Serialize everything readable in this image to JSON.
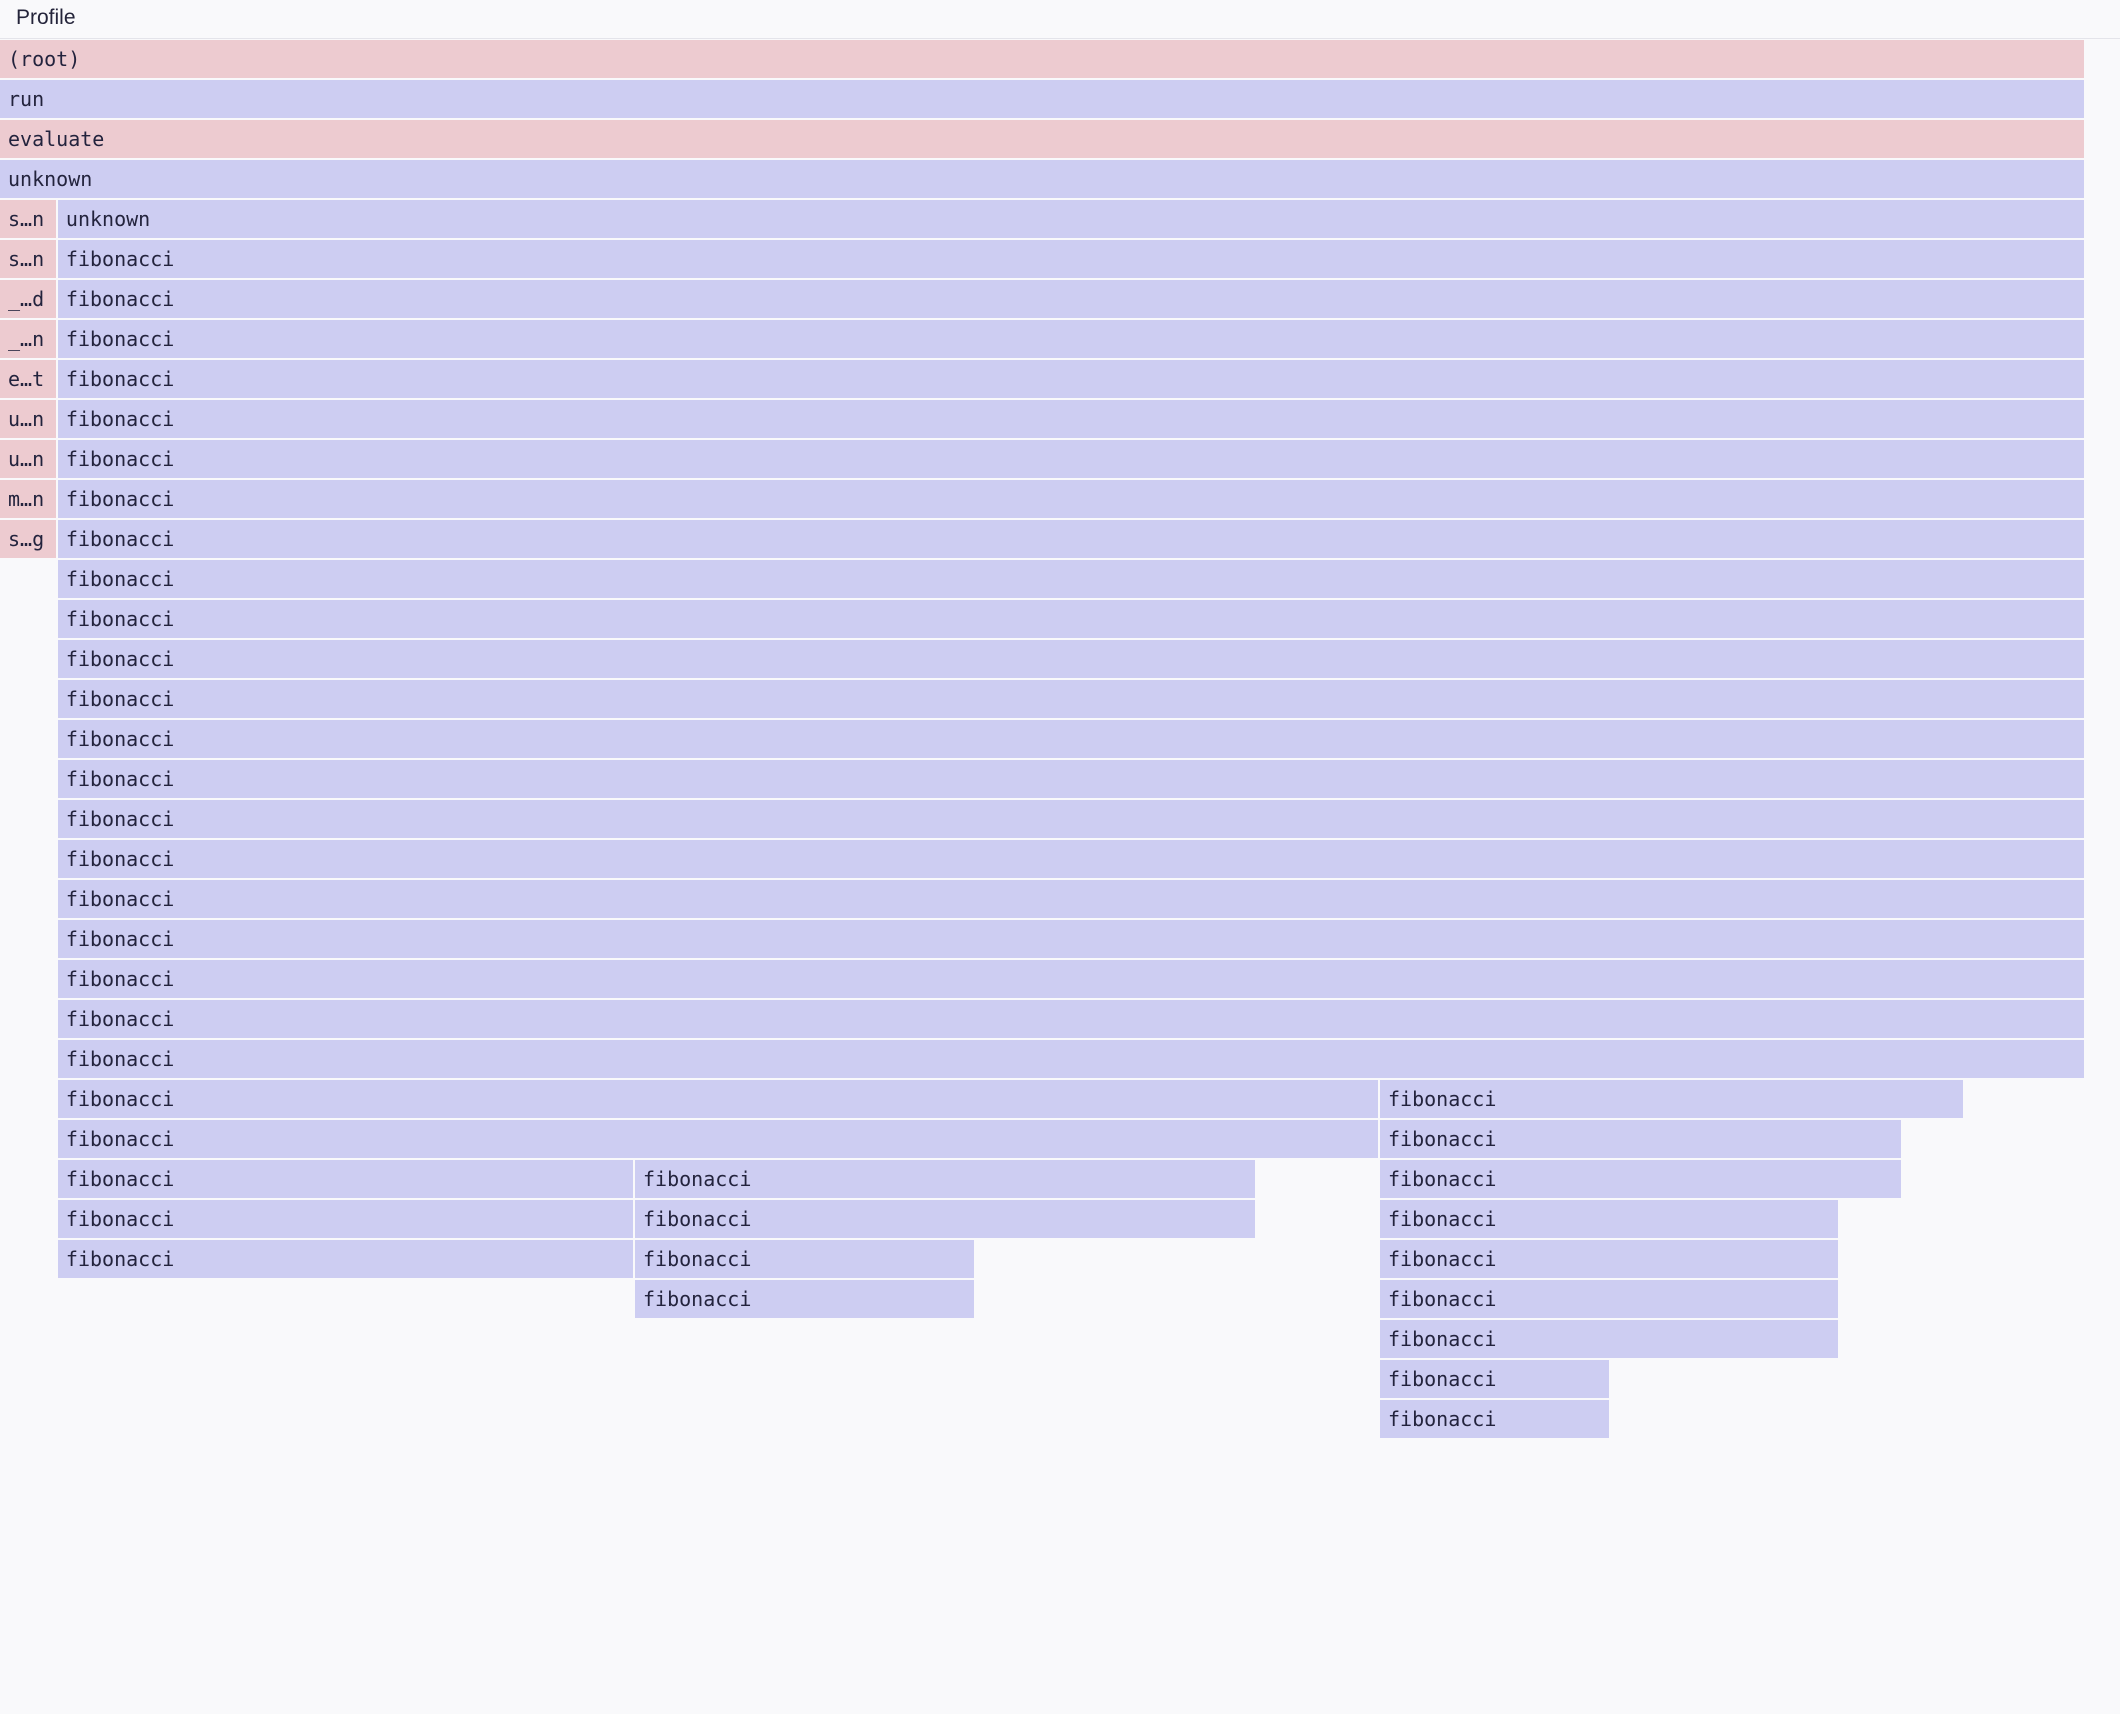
{
  "header": {
    "title": "Profile"
  },
  "colors": {
    "pink": "#edcbd0",
    "lavender": "#cdcdf2",
    "background": "#f9f9fb",
    "text": "#23233d"
  },
  "frames": [
    {
      "name": "(root)",
      "depth": 0,
      "start": 0,
      "end": 100,
      "color": "pink"
    },
    {
      "name": "run",
      "depth": 1,
      "start": 0,
      "end": 100,
      "color": "lavender"
    },
    {
      "name": "evaluate",
      "depth": 2,
      "start": 0,
      "end": 100,
      "color": "pink"
    },
    {
      "name": "unknown",
      "depth": 3,
      "start": 0,
      "end": 100,
      "color": "lavender"
    },
    {
      "name": "s…n",
      "depth": 4,
      "start": 0,
      "end": 2.78,
      "color": "pink"
    },
    {
      "name": "unknown",
      "depth": 4,
      "start": 2.78,
      "end": 100,
      "color": "lavender"
    },
    {
      "name": "s…n",
      "depth": 5,
      "start": 0,
      "end": 2.78,
      "color": "pink"
    },
    {
      "name": "fibonacci",
      "depth": 5,
      "start": 2.78,
      "end": 100,
      "color": "lavender"
    },
    {
      "name": "_…d",
      "depth": 6,
      "start": 0,
      "end": 2.78,
      "color": "pink"
    },
    {
      "name": "fibonacci",
      "depth": 6,
      "start": 2.78,
      "end": 100,
      "color": "lavender"
    },
    {
      "name": "_…n",
      "depth": 7,
      "start": 0,
      "end": 2.78,
      "color": "pink"
    },
    {
      "name": "fibonacci",
      "depth": 7,
      "start": 2.78,
      "end": 100,
      "color": "lavender"
    },
    {
      "name": "e…t",
      "depth": 8,
      "start": 0,
      "end": 2.78,
      "color": "pink"
    },
    {
      "name": "fibonacci",
      "depth": 8,
      "start": 2.78,
      "end": 100,
      "color": "lavender"
    },
    {
      "name": "u…n",
      "depth": 9,
      "start": 0,
      "end": 2.78,
      "color": "pink"
    },
    {
      "name": "fibonacci",
      "depth": 9,
      "start": 2.78,
      "end": 100,
      "color": "lavender"
    },
    {
      "name": "u…n",
      "depth": 10,
      "start": 0,
      "end": 2.78,
      "color": "pink"
    },
    {
      "name": "fibonacci",
      "depth": 10,
      "start": 2.78,
      "end": 100,
      "color": "lavender"
    },
    {
      "name": "m…n",
      "depth": 11,
      "start": 0,
      "end": 2.78,
      "color": "pink"
    },
    {
      "name": "fibonacci",
      "depth": 11,
      "start": 2.78,
      "end": 100,
      "color": "lavender"
    },
    {
      "name": "s…g",
      "depth": 12,
      "start": 0,
      "end": 2.78,
      "color": "pink"
    },
    {
      "name": "fibonacci",
      "depth": 12,
      "start": 2.78,
      "end": 100,
      "color": "lavender"
    },
    {
      "name": "fibonacci",
      "depth": 13,
      "start": 2.78,
      "end": 100,
      "color": "lavender"
    },
    {
      "name": "fibonacci",
      "depth": 14,
      "start": 2.78,
      "end": 100,
      "color": "lavender"
    },
    {
      "name": "fibonacci",
      "depth": 15,
      "start": 2.78,
      "end": 100,
      "color": "lavender"
    },
    {
      "name": "fibonacci",
      "depth": 16,
      "start": 2.78,
      "end": 100,
      "color": "lavender"
    },
    {
      "name": "fibonacci",
      "depth": 17,
      "start": 2.78,
      "end": 100,
      "color": "lavender"
    },
    {
      "name": "fibonacci",
      "depth": 18,
      "start": 2.78,
      "end": 100,
      "color": "lavender"
    },
    {
      "name": "fibonacci",
      "depth": 19,
      "start": 2.78,
      "end": 100,
      "color": "lavender"
    },
    {
      "name": "fibonacci",
      "depth": 20,
      "start": 2.78,
      "end": 100,
      "color": "lavender"
    },
    {
      "name": "fibonacci",
      "depth": 21,
      "start": 2.78,
      "end": 100,
      "color": "lavender"
    },
    {
      "name": "fibonacci",
      "depth": 22,
      "start": 2.78,
      "end": 100,
      "color": "lavender"
    },
    {
      "name": "fibonacci",
      "depth": 23,
      "start": 2.78,
      "end": 100,
      "color": "lavender"
    },
    {
      "name": "fibonacci",
      "depth": 24,
      "start": 2.78,
      "end": 100,
      "color": "lavender"
    },
    {
      "name": "fibonacci",
      "depth": 25,
      "start": 2.78,
      "end": 100,
      "color": "lavender"
    },
    {
      "name": "fibonacci",
      "depth": 26,
      "start": 2.78,
      "end": 66.22,
      "color": "lavender"
    },
    {
      "name": "fibonacci",
      "depth": 26,
      "start": 66.22,
      "end": 94.29,
      "color": "lavender"
    },
    {
      "name": "fibonacci",
      "depth": 27,
      "start": 2.78,
      "end": 66.22,
      "color": "lavender"
    },
    {
      "name": "fibonacci",
      "depth": 27,
      "start": 66.22,
      "end": 91.31,
      "color": "lavender"
    },
    {
      "name": "fibonacci",
      "depth": 28,
      "start": 2.78,
      "end": 30.47,
      "color": "lavender"
    },
    {
      "name": "fibonacci",
      "depth": 28,
      "start": 30.47,
      "end": 60.32,
      "color": "lavender"
    },
    {
      "name": "fibonacci",
      "depth": 28,
      "start": 66.22,
      "end": 91.31,
      "color": "lavender"
    },
    {
      "name": "fibonacci",
      "depth": 29,
      "start": 2.78,
      "end": 30.47,
      "color": "lavender"
    },
    {
      "name": "fibonacci",
      "depth": 29,
      "start": 30.47,
      "end": 60.32,
      "color": "lavender"
    },
    {
      "name": "fibonacci",
      "depth": 29,
      "start": 66.22,
      "end": 88.29,
      "color": "lavender"
    },
    {
      "name": "fibonacci",
      "depth": 30,
      "start": 2.78,
      "end": 30.47,
      "color": "lavender"
    },
    {
      "name": "fibonacci",
      "depth": 30,
      "start": 30.47,
      "end": 46.83,
      "color": "lavender"
    },
    {
      "name": "fibonacci",
      "depth": 30,
      "start": 66.22,
      "end": 88.29,
      "color": "lavender"
    },
    {
      "name": "fibonacci",
      "depth": 31,
      "start": 30.47,
      "end": 46.83,
      "color": "lavender"
    },
    {
      "name": "fibonacci",
      "depth": 31,
      "start": 66.22,
      "end": 88.29,
      "color": "lavender"
    },
    {
      "name": "fibonacci",
      "depth": 32,
      "start": 66.22,
      "end": 88.29,
      "color": "lavender"
    },
    {
      "name": "fibonacci",
      "depth": 33,
      "start": 66.22,
      "end": 77.3,
      "color": "lavender"
    },
    {
      "name": "fibonacci",
      "depth": 34,
      "start": 66.22,
      "end": 77.3,
      "color": "lavender"
    }
  ]
}
